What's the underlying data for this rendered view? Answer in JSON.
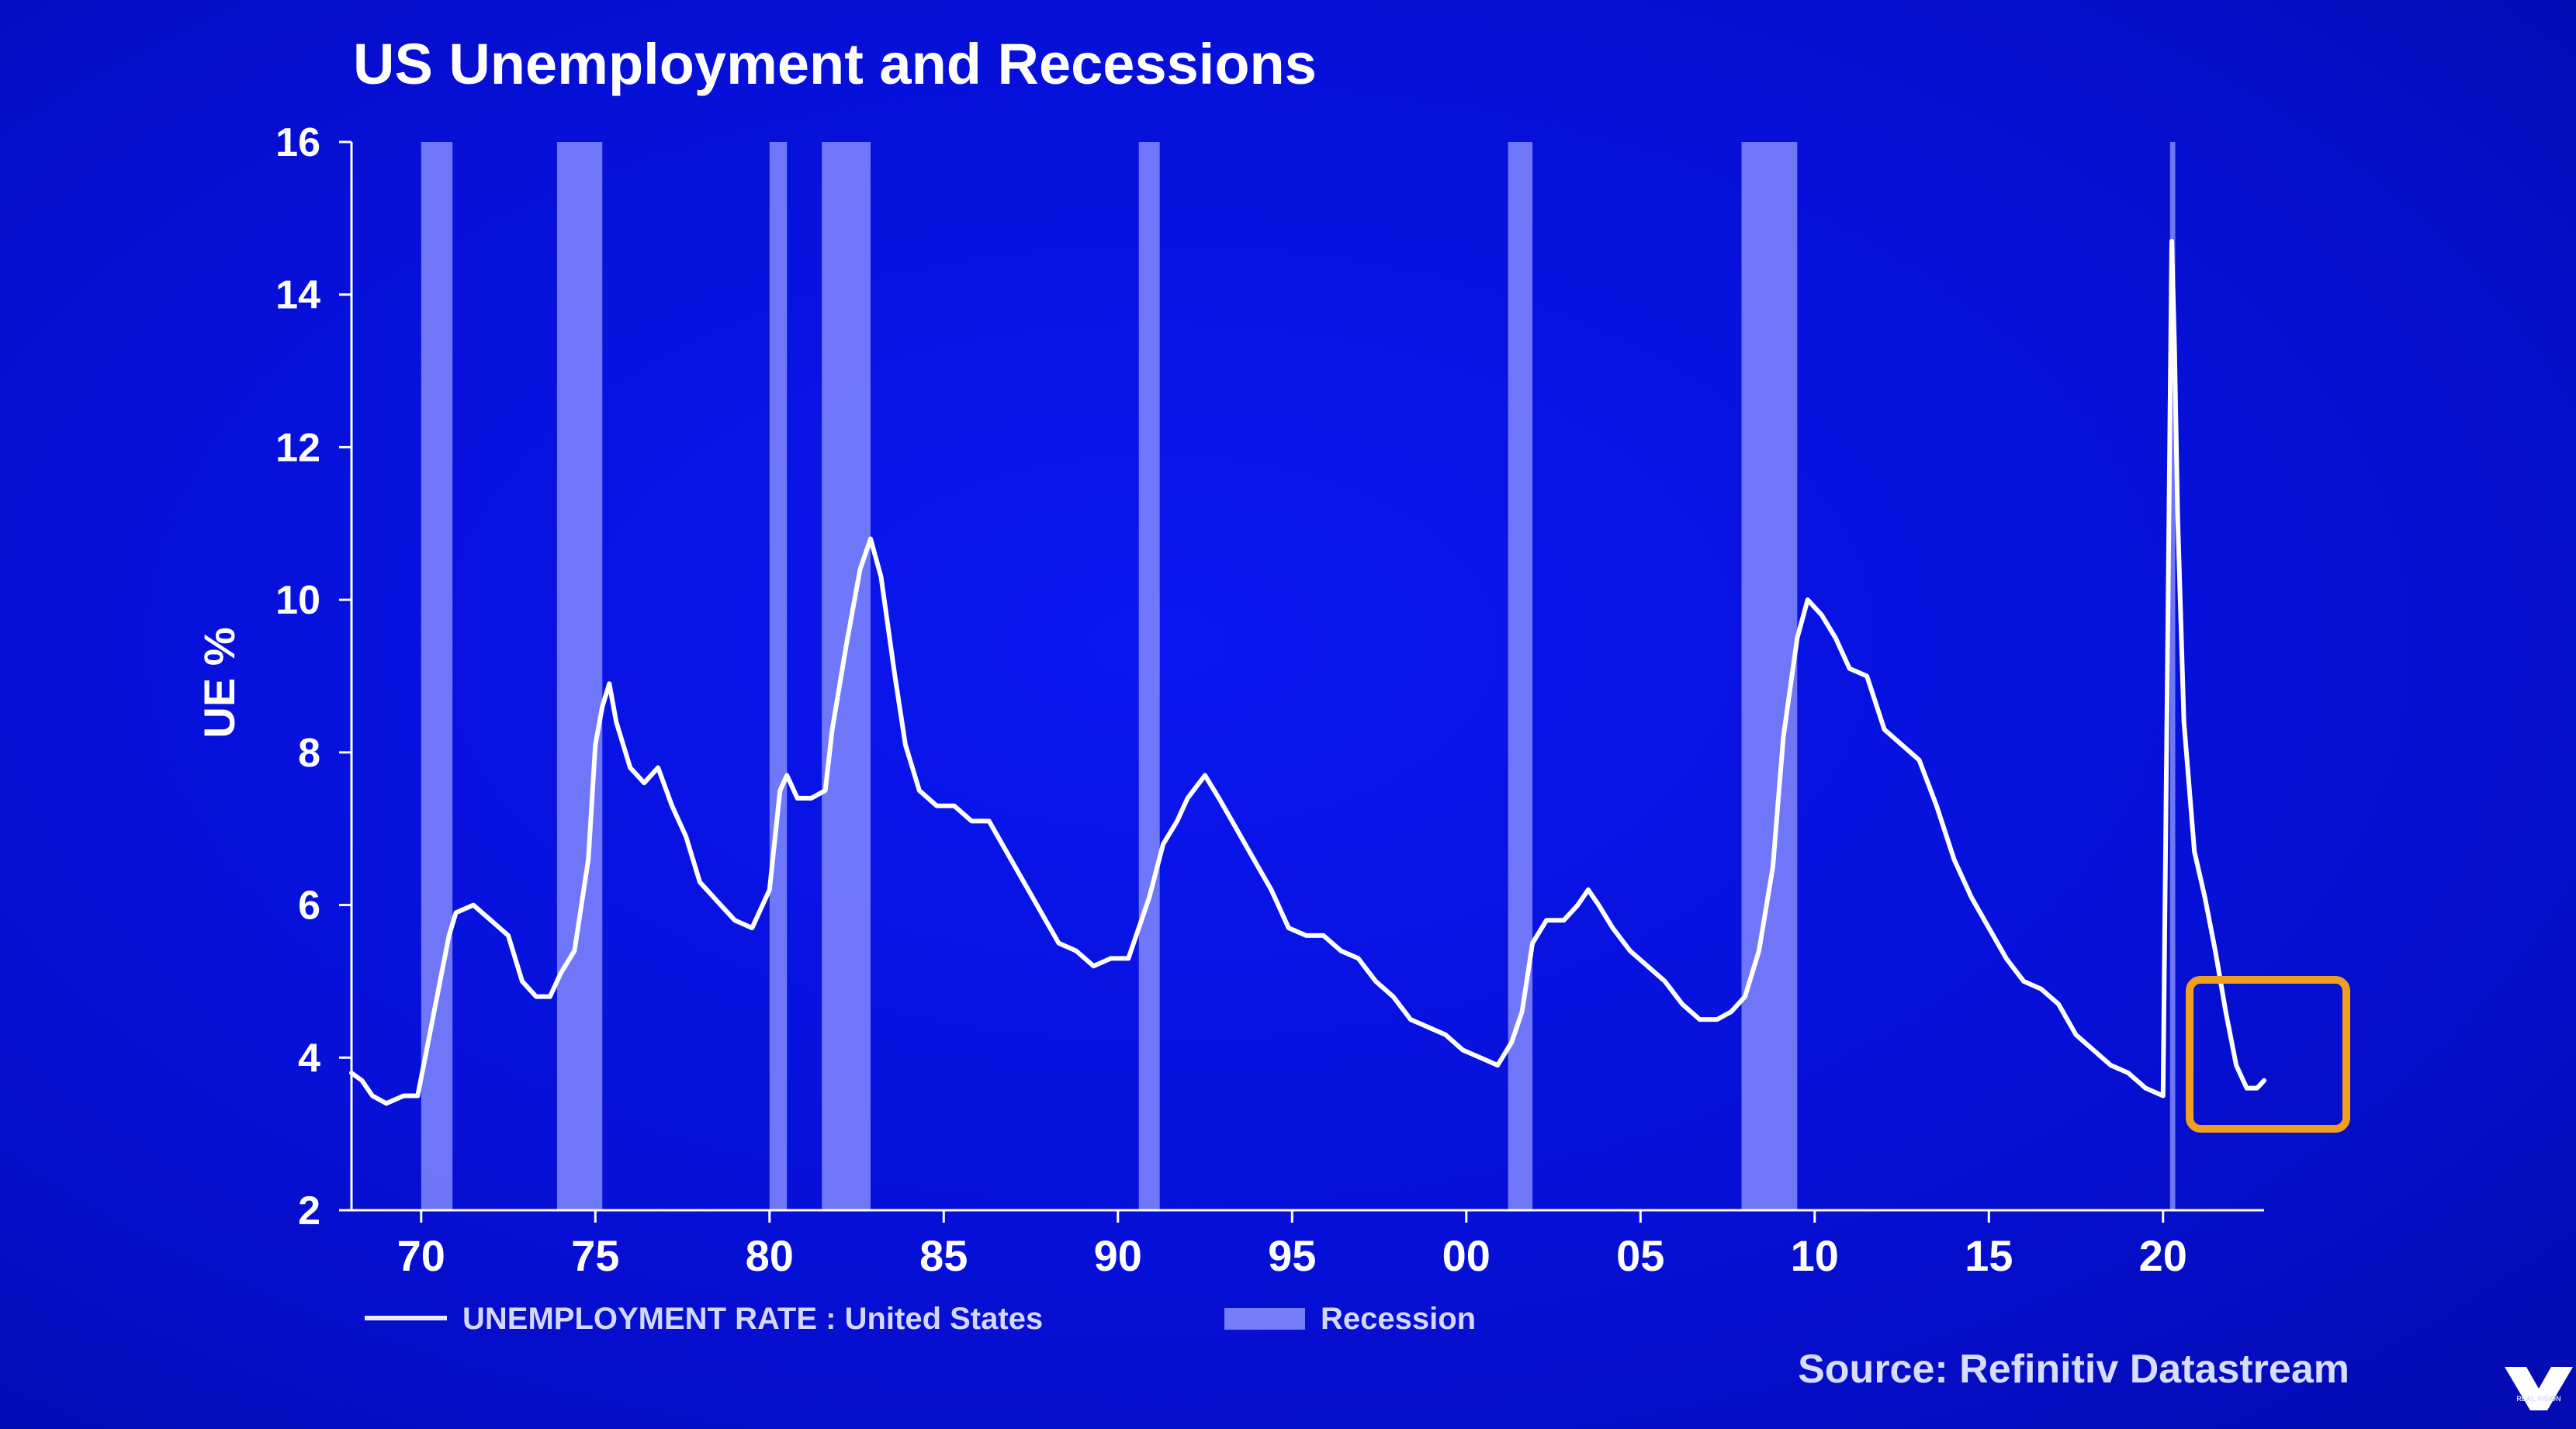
{
  "colors": {
    "background": "#0610d8",
    "line": "#ffffff",
    "recession_band": "#8a90ff",
    "highlight_box": "#f0a020",
    "axis": "#ffffff"
  },
  "logo": {
    "icon": "real-vision-v-logo",
    "text": "REAL VISION"
  },
  "chart_data": {
    "type": "line",
    "title": "US Unemployment and Recessions",
    "xlabel": "",
    "ylabel": "UE %",
    "ylim": [
      2,
      16
    ],
    "xlim": [
      1968.0,
      2022.9
    ],
    "yticks": [
      "2",
      "4",
      "6",
      "8",
      "10",
      "12",
      "14",
      "16"
    ],
    "yticks_values": [
      2,
      4,
      6,
      8,
      10,
      12,
      14,
      16
    ],
    "xticks": [
      "70",
      "75",
      "80",
      "85",
      "90",
      "95",
      "00",
      "05",
      "10",
      "15",
      "20"
    ],
    "xticks_values": [
      1970,
      1975,
      1980,
      1985,
      1990,
      1995,
      2000,
      2005,
      2010,
      2015,
      2020
    ],
    "grid": false,
    "legend_position": "bottom-left",
    "legend": [
      {
        "label": "UNEMPLOYMENT RATE : United States",
        "kind": "line"
      },
      {
        "label": "Recession",
        "kind": "band"
      }
    ],
    "source": "Source: Refinitiv Datastream",
    "recessions": [
      [
        1970.0,
        1970.9
      ],
      [
        1973.9,
        1975.2
      ],
      [
        1980.0,
        1980.5
      ],
      [
        1981.5,
        1982.9
      ],
      [
        1990.6,
        1991.2
      ],
      [
        2001.2,
        2001.9
      ],
      [
        2007.9,
        2009.5
      ],
      [
        2020.2,
        2020.35
      ]
    ],
    "series": [
      {
        "name": "UNEMPLOYMENT RATE : United States",
        "x": [
          1968.0,
          1968.3,
          1968.6,
          1969.0,
          1969.5,
          1969.9,
          1970.2,
          1970.5,
          1970.8,
          1971.0,
          1971.5,
          1972.0,
          1972.5,
          1972.9,
          1973.3,
          1973.7,
          1974.0,
          1974.4,
          1974.8,
          1975.0,
          1975.2,
          1975.4,
          1975.6,
          1976.0,
          1976.4,
          1976.8,
          1977.2,
          1977.6,
          1978.0,
          1978.6,
          1979.0,
          1979.5,
          1980.0,
          1980.3,
          1980.5,
          1980.8,
          1981.2,
          1981.6,
          1981.8,
          1982.2,
          1982.6,
          1982.9,
          1983.2,
          1983.6,
          1983.9,
          1984.3,
          1984.8,
          1985.3,
          1985.8,
          1986.3,
          1986.8,
          1987.3,
          1987.8,
          1988.3,
          1988.8,
          1989.3,
          1989.8,
          1990.3,
          1990.6,
          1990.9,
          1991.3,
          1991.7,
          1992.0,
          1992.5,
          1992.9,
          1993.4,
          1993.9,
          1994.4,
          1994.9,
          1995.4,
          1995.9,
          1996.4,
          1996.9,
          1997.4,
          1997.9,
          1998.4,
          1998.9,
          1999.4,
          1999.9,
          2000.4,
          2000.9,
          2001.3,
          2001.6,
          2001.9,
          2002.3,
          2002.8,
          2003.2,
          2003.5,
          2003.8,
          2004.2,
          2004.7,
          2005.2,
          2005.7,
          2006.2,
          2006.7,
          2007.2,
          2007.6,
          2008.0,
          2008.4,
          2008.8,
          2009.1,
          2009.5,
          2009.8,
          2010.2,
          2010.6,
          2011.0,
          2011.5,
          2012.0,
          2012.5,
          2013.0,
          2013.5,
          2014.0,
          2014.5,
          2015.0,
          2015.5,
          2016.0,
          2016.5,
          2017.0,
          2017.5,
          2018.0,
          2018.5,
          2019.0,
          2019.5,
          2020.0,
          2020.25,
          2020.33,
          2020.42,
          2020.6,
          2020.9,
          2021.2,
          2021.5,
          2021.8,
          2022.1,
          2022.4,
          2022.7,
          2022.9
        ],
        "values": [
          3.8,
          3.7,
          3.5,
          3.4,
          3.5,
          3.5,
          4.2,
          4.9,
          5.6,
          5.9,
          6.0,
          5.8,
          5.6,
          5.0,
          4.8,
          4.8,
          5.1,
          5.4,
          6.6,
          8.1,
          8.6,
          8.9,
          8.4,
          7.8,
          7.6,
          7.8,
          7.3,
          6.9,
          6.3,
          6.0,
          5.8,
          5.7,
          6.2,
          7.5,
          7.7,
          7.4,
          7.4,
          7.5,
          8.3,
          9.4,
          10.4,
          10.8,
          10.3,
          9.0,
          8.1,
          7.5,
          7.3,
          7.3,
          7.1,
          7.1,
          6.7,
          6.3,
          5.9,
          5.5,
          5.4,
          5.2,
          5.3,
          5.3,
          5.7,
          6.1,
          6.8,
          7.1,
          7.4,
          7.7,
          7.4,
          7.0,
          6.6,
          6.2,
          5.7,
          5.6,
          5.6,
          5.4,
          5.3,
          5.0,
          4.8,
          4.5,
          4.4,
          4.3,
          4.1,
          4.0,
          3.9,
          4.2,
          4.6,
          5.5,
          5.8,
          5.8,
          6.0,
          6.2,
          6.0,
          5.7,
          5.4,
          5.2,
          5.0,
          4.7,
          4.5,
          4.5,
          4.6,
          4.8,
          5.4,
          6.5,
          8.2,
          9.5,
          10.0,
          9.8,
          9.5,
          9.1,
          9.0,
          8.3,
          8.1,
          7.9,
          7.3,
          6.6,
          6.1,
          5.7,
          5.3,
          5.0,
          4.9,
          4.7,
          4.3,
          4.1,
          3.9,
          3.8,
          3.6,
          3.5,
          14.7,
          13.3,
          11.1,
          8.4,
          6.7,
          6.1,
          5.4,
          4.6,
          3.9,
          3.6,
          3.6,
          3.7
        ]
      }
    ]
  }
}
